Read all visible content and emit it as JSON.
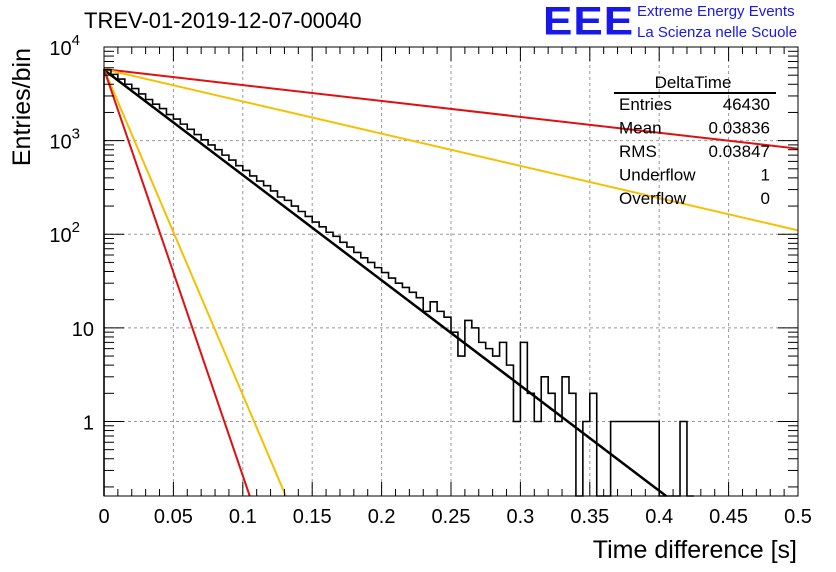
{
  "header": {
    "title": "TREV-01-2019-12-07-00040",
    "logo_text": "EEE",
    "logo_line1": "Extreme Energy Events",
    "logo_line2": "La Scienza nelle Scuole"
  },
  "stats": {
    "name": "DeltaTime",
    "rows": [
      {
        "label": "Entries",
        "value": "46430"
      },
      {
        "label": "Mean",
        "value": "0.03836"
      },
      {
        "label": "RMS",
        "value": "0.03847"
      },
      {
        "label": "Underflow",
        "value": "1"
      },
      {
        "label": "Overflow",
        "value": "0"
      }
    ]
  },
  "chart_data": {
    "type": "histogram",
    "xlabel": "Time difference [s]",
    "ylabel": "Entries/bin",
    "xlim": [
      0,
      0.5
    ],
    "ylim": [
      0.16,
      10000
    ],
    "ylog": true,
    "grid": true,
    "x_ticks": [
      "0",
      "0.05",
      "0.1",
      "0.15",
      "0.2",
      "0.25",
      "0.3",
      "0.35",
      "0.4",
      "0.45",
      "0.5"
    ],
    "y_ticks": [
      {
        "value": 1,
        "label": "1"
      },
      {
        "value": 10,
        "label": "10"
      },
      {
        "value": 100,
        "label": "10",
        "exp": "2"
      },
      {
        "value": 1000,
        "label": "10",
        "exp": "3"
      },
      {
        "value": 10000,
        "label": "10",
        "exp": "4"
      }
    ],
    "histogram": {
      "color": "#000000",
      "bin_width": 0.005,
      "bins": [
        {
          "x": 0.0,
          "y": 5700
        },
        {
          "x": 0.005,
          "y": 5100
        },
        {
          "x": 0.01,
          "y": 4550
        },
        {
          "x": 0.015,
          "y": 4000
        },
        {
          "x": 0.02,
          "y": 3600
        },
        {
          "x": 0.025,
          "y": 3150
        },
        {
          "x": 0.03,
          "y": 2750
        },
        {
          "x": 0.035,
          "y": 2450
        },
        {
          "x": 0.04,
          "y": 2200
        },
        {
          "x": 0.045,
          "y": 1900
        },
        {
          "x": 0.05,
          "y": 1700
        },
        {
          "x": 0.055,
          "y": 1500
        },
        {
          "x": 0.06,
          "y": 1320
        },
        {
          "x": 0.065,
          "y": 1160
        },
        {
          "x": 0.07,
          "y": 1020
        },
        {
          "x": 0.075,
          "y": 900
        },
        {
          "x": 0.08,
          "y": 800
        },
        {
          "x": 0.085,
          "y": 700
        },
        {
          "x": 0.09,
          "y": 620
        },
        {
          "x": 0.095,
          "y": 540
        },
        {
          "x": 0.1,
          "y": 480
        },
        {
          "x": 0.105,
          "y": 420
        },
        {
          "x": 0.11,
          "y": 370
        },
        {
          "x": 0.115,
          "y": 330
        },
        {
          "x": 0.12,
          "y": 290
        },
        {
          "x": 0.125,
          "y": 250
        },
        {
          "x": 0.13,
          "y": 230
        },
        {
          "x": 0.135,
          "y": 200
        },
        {
          "x": 0.14,
          "y": 175
        },
        {
          "x": 0.145,
          "y": 155
        },
        {
          "x": 0.15,
          "y": 135
        },
        {
          "x": 0.155,
          "y": 120
        },
        {
          "x": 0.16,
          "y": 105
        },
        {
          "x": 0.165,
          "y": 95
        },
        {
          "x": 0.17,
          "y": 82
        },
        {
          "x": 0.175,
          "y": 73
        },
        {
          "x": 0.18,
          "y": 64
        },
        {
          "x": 0.185,
          "y": 56
        },
        {
          "x": 0.19,
          "y": 50
        },
        {
          "x": 0.195,
          "y": 44
        },
        {
          "x": 0.2,
          "y": 39
        },
        {
          "x": 0.205,
          "y": 34
        },
        {
          "x": 0.21,
          "y": 30
        },
        {
          "x": 0.215,
          "y": 27
        },
        {
          "x": 0.22,
          "y": 24
        },
        {
          "x": 0.225,
          "y": 21
        },
        {
          "x": 0.23,
          "y": 15
        },
        {
          "x": 0.235,
          "y": 19
        },
        {
          "x": 0.24,
          "y": 15
        },
        {
          "x": 0.245,
          "y": 13
        },
        {
          "x": 0.25,
          "y": 9
        },
        {
          "x": 0.255,
          "y": 5
        },
        {
          "x": 0.26,
          "y": 12
        },
        {
          "x": 0.265,
          "y": 10
        },
        {
          "x": 0.27,
          "y": 7
        },
        {
          "x": 0.275,
          "y": 6
        },
        {
          "x": 0.28,
          "y": 5
        },
        {
          "x": 0.285,
          "y": 7
        },
        {
          "x": 0.29,
          "y": 4
        },
        {
          "x": 0.295,
          "y": 1
        },
        {
          "x": 0.3,
          "y": 7
        },
        {
          "x": 0.305,
          "y": 2
        },
        {
          "x": 0.31,
          "y": 1
        },
        {
          "x": 0.315,
          "y": 3
        },
        {
          "x": 0.32,
          "y": 2
        },
        {
          "x": 0.325,
          "y": 1
        },
        {
          "x": 0.33,
          "y": 3
        },
        {
          "x": 0.335,
          "y": 2
        },
        {
          "x": 0.34,
          "y": 0
        },
        {
          "x": 0.345,
          "y": 1
        },
        {
          "x": 0.35,
          "y": 2
        },
        {
          "x": 0.355,
          "y": 0
        },
        {
          "x": 0.36,
          "y": 0
        },
        {
          "x": 0.365,
          "y": 1
        },
        {
          "x": 0.37,
          "y": 1
        },
        {
          "x": 0.375,
          "y": 1
        },
        {
          "x": 0.38,
          "y": 1
        },
        {
          "x": 0.385,
          "y": 1
        },
        {
          "x": 0.39,
          "y": 1
        },
        {
          "x": 0.395,
          "y": 1
        },
        {
          "x": 0.4,
          "y": 0
        },
        {
          "x": 0.405,
          "y": 0
        },
        {
          "x": 0.41,
          "y": 0
        },
        {
          "x": 0.415,
          "y": 1
        },
        {
          "x": 0.42,
          "y": 0
        }
      ]
    },
    "lines": [
      {
        "color": "#000000",
        "x": [
          0.0,
          0.405
        ],
        "y": [
          5700,
          0.16
        ]
      },
      {
        "color": "#e01010",
        "x": [
          0.0,
          0.5
        ],
        "y": [
          5800,
          820
        ]
      },
      {
        "color": "#f5c000",
        "x": [
          0.0,
          0.5
        ],
        "y": [
          5800,
          110
        ]
      },
      {
        "color": "#f5c000",
        "x": [
          0.0,
          0.131
        ],
        "y": [
          5800,
          0.16
        ]
      },
      {
        "color": "#e01010",
        "x": [
          0.0,
          0.105
        ],
        "y": [
          5800,
          0.16
        ]
      }
    ]
  }
}
